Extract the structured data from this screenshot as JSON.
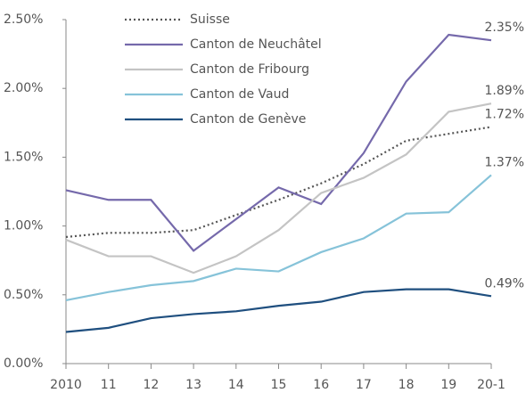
{
  "chart_data": {
    "type": "line",
    "categories": [
      "2010",
      "11",
      "12",
      "13",
      "14",
      "15",
      "16",
      "17",
      "18",
      "19",
      "20-1"
    ],
    "series": [
      {
        "name": "Suisse",
        "color": "#555555",
        "style": "dotted",
        "values": [
          0.92,
          0.95,
          0.95,
          0.97,
          1.08,
          1.19,
          1.31,
          1.45,
          1.62,
          1.67,
          1.72
        ],
        "value_labels": [
          null,
          null,
          null,
          null,
          null,
          null,
          null,
          null,
          null,
          null,
          "1.72%"
        ]
      },
      {
        "name": "Canton de Neuchâtel",
        "color": "#7569ab",
        "style": "solid",
        "values": [
          1.26,
          1.19,
          1.19,
          0.82,
          1.05,
          1.28,
          1.16,
          1.53,
          2.05,
          2.39,
          2.35
        ],
        "value_labels": [
          null,
          null,
          null,
          null,
          null,
          null,
          null,
          null,
          null,
          null,
          "2.35%"
        ]
      },
      {
        "name": "Canton de Fribourg",
        "color": "#c4c4c4",
        "style": "solid",
        "values": [
          0.9,
          0.78,
          0.78,
          0.66,
          0.78,
          0.97,
          1.24,
          1.35,
          1.52,
          1.83,
          1.89
        ],
        "value_labels": [
          null,
          null,
          null,
          null,
          null,
          null,
          null,
          null,
          null,
          null,
          "1.89%"
        ]
      },
      {
        "name": "Canton de Vaud",
        "color": "#86c3d9",
        "style": "solid",
        "values": [
          0.46,
          0.52,
          0.57,
          0.6,
          0.69,
          0.67,
          0.81,
          0.91,
          1.09,
          1.1,
          1.37
        ],
        "value_labels": [
          null,
          null,
          null,
          null,
          null,
          null,
          null,
          null,
          null,
          null,
          "1.37%"
        ]
      },
      {
        "name": "Canton de Genève",
        "color": "#1f4f7f",
        "style": "solid",
        "values": [
          0.23,
          0.26,
          0.33,
          0.36,
          0.38,
          0.42,
          0.45,
          0.52,
          0.54,
          0.54,
          0.49
        ],
        "value_labels": [
          null,
          null,
          null,
          null,
          null,
          null,
          null,
          null,
          null,
          null,
          "0.49%"
        ]
      }
    ],
    "ylim": [
      0,
      2.5
    ],
    "yticks": [
      {
        "value": 0,
        "label": "0.00%"
      },
      {
        "value": 0.5,
        "label": "0.50%"
      },
      {
        "value": 1,
        "label": "1.00%"
      },
      {
        "value": 1.5,
        "label": "1.50%"
      },
      {
        "value": 2,
        "label": "2.00%"
      },
      {
        "value": 2.5,
        "label": "2.50%"
      }
    ],
    "grid": false,
    "legend": "upper left"
  }
}
